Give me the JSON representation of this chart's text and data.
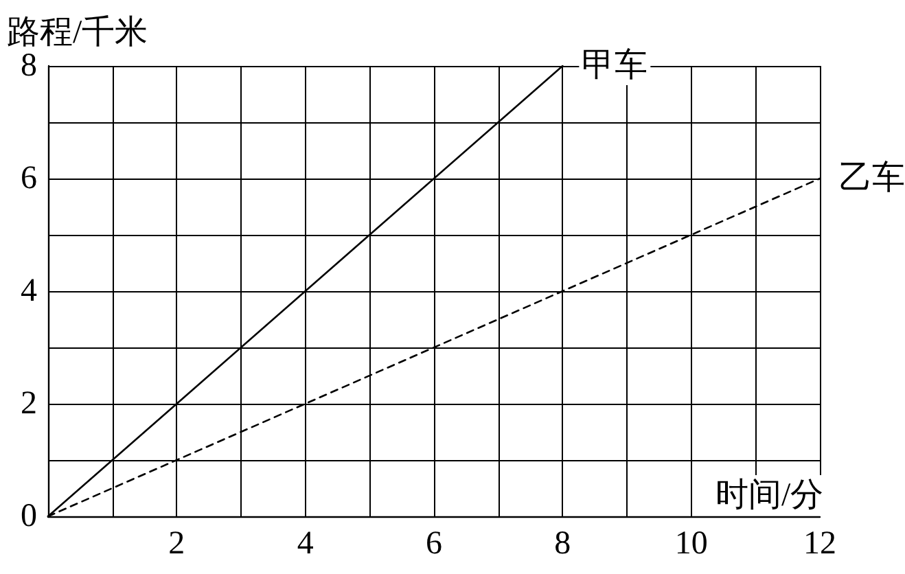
{
  "chart_data": {
    "type": "line",
    "xlabel": "时间/分",
    "ylabel": "路程/千米",
    "series": [
      {
        "name": "甲车",
        "color": "#000000",
        "x": [
          0,
          8
        ],
        "values": [
          0,
          8
        ],
        "line_style": "solid"
      },
      {
        "name": "乙车",
        "color": "#000000",
        "x": [
          0,
          12
        ],
        "values": [
          0,
          6
        ],
        "line_style": "dashed"
      }
    ],
    "xlim": [
      0,
      12
    ],
    "xticks": [
      {
        "value": 0,
        "label": null
      },
      {
        "value": 1,
        "label": null
      },
      2,
      {
        "value": 3,
        "label": null
      },
      4,
      {
        "value": 5,
        "label": null
      },
      6,
      {
        "value": 7,
        "label": null
      },
      8,
      {
        "value": 9,
        "label": null
      },
      10,
      {
        "value": 11,
        "label": null
      },
      12
    ],
    "ylim": [
      0,
      8
    ],
    "yticks": [
      0,
      {
        "value": 1,
        "label": null
      },
      2,
      {
        "value": 3,
        "label": null
      },
      4,
      {
        "value": 5,
        "label": null
      },
      6,
      {
        "value": 7,
        "label": null
      },
      8
    ],
    "grid": true,
    "legend": false,
    "marker": "none"
  }
}
